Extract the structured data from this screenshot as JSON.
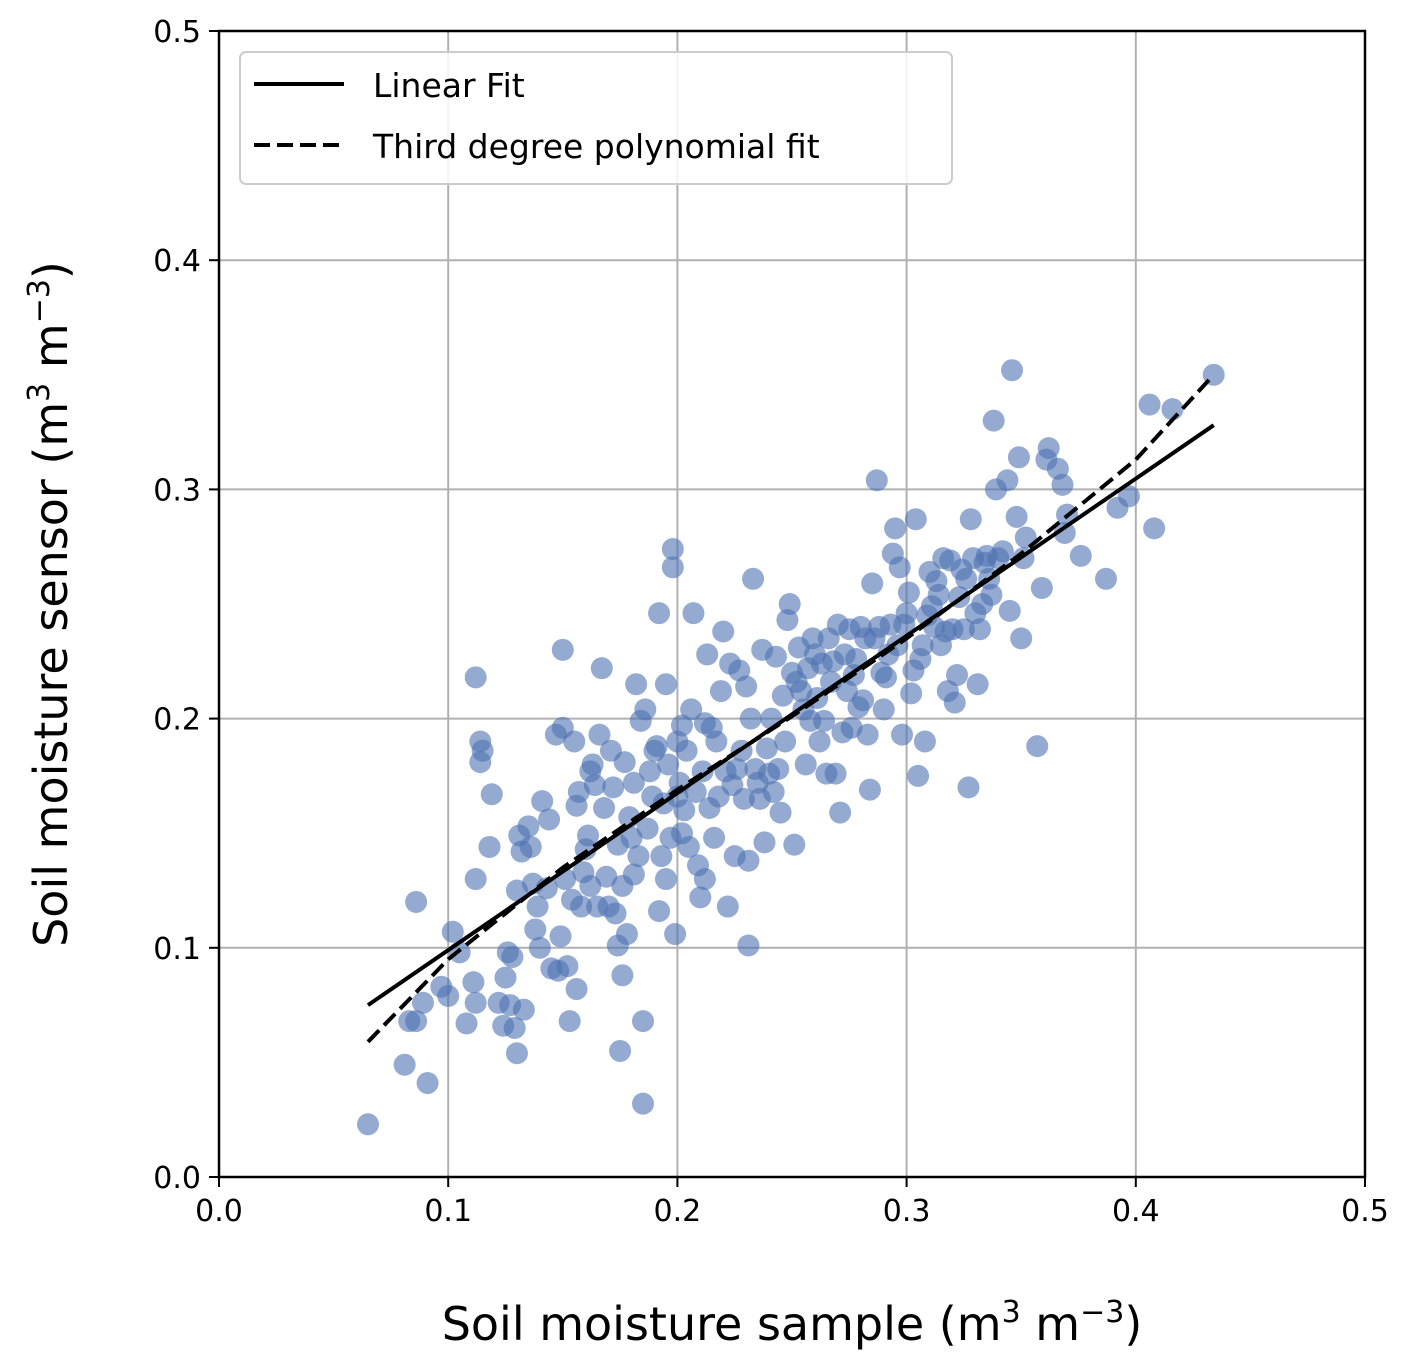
{
  "chart_data": {
    "type": "scatter",
    "xlabel": {
      "text": "Soil moisture sample (m",
      "sup1": "3",
      "mid": " m",
      "sup2": "−3",
      "end": ")"
    },
    "ylabel": {
      "text": "Soil moisture sensor (m",
      "sup1": "3",
      "mid": " m",
      "sup2": "−3",
      "end": ")"
    },
    "xlim": [
      0.0,
      0.5
    ],
    "ylim": [
      0.0,
      0.5
    ],
    "xticks": [
      "0.0",
      "0.1",
      "0.2",
      "0.3",
      "0.4",
      "0.5"
    ],
    "yticks": [
      "0.0",
      "0.1",
      "0.2",
      "0.3",
      "0.4",
      "0.5"
    ],
    "grid": true,
    "legend_position": "top-left",
    "point_color": "#4c72b0",
    "series": [
      {
        "name": "",
        "kind": "scatter",
        "points": [
          [
            0.065,
            0.023
          ],
          [
            0.081,
            0.049
          ],
          [
            0.083,
            0.068
          ],
          [
            0.086,
            0.068
          ],
          [
            0.089,
            0.076
          ],
          [
            0.091,
            0.041
          ],
          [
            0.086,
            0.12
          ],
          [
            0.097,
            0.083
          ],
          [
            0.1,
            0.079
          ],
          [
            0.102,
            0.107
          ],
          [
            0.105,
            0.098
          ],
          [
            0.108,
            0.067
          ],
          [
            0.111,
            0.085
          ],
          [
            0.112,
            0.076
          ],
          [
            0.112,
            0.13
          ],
          [
            0.112,
            0.218
          ],
          [
            0.114,
            0.19
          ],
          [
            0.114,
            0.181
          ],
          [
            0.115,
            0.186
          ],
          [
            0.118,
            0.144
          ],
          [
            0.119,
            0.167
          ],
          [
            0.122,
            0.076
          ],
          [
            0.124,
            0.066
          ],
          [
            0.125,
            0.087
          ],
          [
            0.126,
            0.098
          ],
          [
            0.127,
            0.075
          ],
          [
            0.128,
            0.096
          ],
          [
            0.129,
            0.065
          ],
          [
            0.13,
            0.054
          ],
          [
            0.13,
            0.125
          ],
          [
            0.131,
            0.149
          ],
          [
            0.132,
            0.142
          ],
          [
            0.133,
            0.073
          ],
          [
            0.135,
            0.153
          ],
          [
            0.136,
            0.144
          ],
          [
            0.137,
            0.128
          ],
          [
            0.138,
            0.108
          ],
          [
            0.139,
            0.118
          ],
          [
            0.14,
            0.1
          ],
          [
            0.141,
            0.164
          ],
          [
            0.143,
            0.126
          ],
          [
            0.144,
            0.156
          ],
          [
            0.145,
            0.091
          ],
          [
            0.147,
            0.193
          ],
          [
            0.148,
            0.09
          ],
          [
            0.149,
            0.105
          ],
          [
            0.15,
            0.23
          ],
          [
            0.15,
            0.196
          ],
          [
            0.151,
            0.13
          ],
          [
            0.152,
            0.092
          ],
          [
            0.153,
            0.068
          ],
          [
            0.154,
            0.121
          ],
          [
            0.155,
            0.19
          ],
          [
            0.156,
            0.082
          ],
          [
            0.156,
            0.162
          ],
          [
            0.157,
            0.168
          ],
          [
            0.158,
            0.118
          ],
          [
            0.159,
            0.133
          ],
          [
            0.16,
            0.143
          ],
          [
            0.161,
            0.149
          ],
          [
            0.162,
            0.177
          ],
          [
            0.162,
            0.127
          ],
          [
            0.163,
            0.18
          ],
          [
            0.164,
            0.171
          ],
          [
            0.165,
            0.118
          ],
          [
            0.166,
            0.193
          ],
          [
            0.167,
            0.222
          ],
          [
            0.168,
            0.161
          ],
          [
            0.169,
            0.131
          ],
          [
            0.17,
            0.118
          ],
          [
            0.171,
            0.186
          ],
          [
            0.172,
            0.17
          ],
          [
            0.173,
            0.115
          ],
          [
            0.174,
            0.145
          ],
          [
            0.174,
            0.101
          ],
          [
            0.175,
            0.055
          ],
          [
            0.176,
            0.088
          ],
          [
            0.176,
            0.127
          ],
          [
            0.177,
            0.181
          ],
          [
            0.178,
            0.106
          ],
          [
            0.179,
            0.157
          ],
          [
            0.18,
            0.148
          ],
          [
            0.181,
            0.132
          ],
          [
            0.181,
            0.172
          ],
          [
            0.182,
            0.215
          ],
          [
            0.183,
            0.14
          ],
          [
            0.184,
            0.199
          ],
          [
            0.185,
            0.068
          ],
          [
            0.185,
            0.032
          ],
          [
            0.186,
            0.204
          ],
          [
            0.187,
            0.152
          ],
          [
            0.188,
            0.177
          ],
          [
            0.189,
            0.166
          ],
          [
            0.19,
            0.186
          ],
          [
            0.191,
            0.188
          ],
          [
            0.192,
            0.116
          ],
          [
            0.192,
            0.246
          ],
          [
            0.193,
            0.14
          ],
          [
            0.194,
            0.163
          ],
          [
            0.195,
            0.215
          ],
          [
            0.195,
            0.13
          ],
          [
            0.196,
            0.18
          ],
          [
            0.197,
            0.148
          ],
          [
            0.198,
            0.274
          ],
          [
            0.198,
            0.266
          ],
          [
            0.199,
            0.106
          ],
          [
            0.2,
            0.166
          ],
          [
            0.2,
            0.19
          ],
          [
            0.201,
            0.172
          ],
          [
            0.202,
            0.197
          ],
          [
            0.202,
            0.15
          ],
          [
            0.203,
            0.16
          ],
          [
            0.204,
            0.186
          ],
          [
            0.205,
            0.144
          ],
          [
            0.206,
            0.204
          ],
          [
            0.207,
            0.246
          ],
          [
            0.208,
            0.168
          ],
          [
            0.209,
            0.136
          ],
          [
            0.21,
            0.122
          ],
          [
            0.211,
            0.177
          ],
          [
            0.212,
            0.13
          ],
          [
            0.212,
            0.198
          ],
          [
            0.213,
            0.228
          ],
          [
            0.214,
            0.161
          ],
          [
            0.215,
            0.196
          ],
          [
            0.216,
            0.148
          ],
          [
            0.217,
            0.19
          ],
          [
            0.218,
            0.166
          ],
          [
            0.219,
            0.212
          ],
          [
            0.22,
            0.238
          ],
          [
            0.221,
            0.177
          ],
          [
            0.222,
            0.118
          ],
          [
            0.223,
            0.224
          ],
          [
            0.224,
            0.171
          ],
          [
            0.225,
            0.14
          ],
          [
            0.226,
            0.178
          ],
          [
            0.227,
            0.221
          ],
          [
            0.228,
            0.186
          ],
          [
            0.229,
            0.165
          ],
          [
            0.23,
            0.214
          ],
          [
            0.231,
            0.138
          ],
          [
            0.231,
            0.101
          ],
          [
            0.232,
            0.2
          ],
          [
            0.233,
            0.261
          ],
          [
            0.234,
            0.178
          ],
          [
            0.235,
            0.172
          ],
          [
            0.236,
            0.165
          ],
          [
            0.237,
            0.23
          ],
          [
            0.238,
            0.146
          ],
          [
            0.239,
            0.187
          ],
          [
            0.24,
            0.176
          ],
          [
            0.241,
            0.2
          ],
          [
            0.242,
            0.168
          ],
          [
            0.243,
            0.227
          ],
          [
            0.244,
            0.178
          ],
          [
            0.245,
            0.159
          ],
          [
            0.246,
            0.21
          ],
          [
            0.247,
            0.19
          ],
          [
            0.248,
            0.243
          ],
          [
            0.249,
            0.25
          ],
          [
            0.25,
            0.22
          ],
          [
            0.251,
            0.145
          ],
          [
            0.252,
            0.216
          ],
          [
            0.253,
            0.231
          ],
          [
            0.254,
            0.212
          ],
          [
            0.255,
            0.204
          ],
          [
            0.256,
            0.18
          ],
          [
            0.257,
            0.222
          ],
          [
            0.258,
            0.199
          ],
          [
            0.259,
            0.235
          ],
          [
            0.26,
            0.228
          ],
          [
            0.261,
            0.209
          ],
          [
            0.262,
            0.19
          ],
          [
            0.263,
            0.224
          ],
          [
            0.264,
            0.199
          ],
          [
            0.265,
            0.176
          ],
          [
            0.266,
            0.235
          ],
          [
            0.267,
            0.216
          ],
          [
            0.268,
            0.225
          ],
          [
            0.269,
            0.176
          ],
          [
            0.27,
            0.241
          ],
          [
            0.271,
            0.159
          ],
          [
            0.272,
            0.194
          ],
          [
            0.273,
            0.228
          ],
          [
            0.274,
            0.212
          ],
          [
            0.275,
            0.239
          ],
          [
            0.276,
            0.196
          ],
          [
            0.277,
            0.219
          ],
          [
            0.278,
            0.226
          ],
          [
            0.279,
            0.205
          ],
          [
            0.28,
            0.24
          ],
          [
            0.281,
            0.208
          ],
          [
            0.282,
            0.235
          ],
          [
            0.283,
            0.193
          ],
          [
            0.284,
            0.169
          ],
          [
            0.285,
            0.259
          ],
          [
            0.286,
            0.235
          ],
          [
            0.287,
            0.304
          ],
          [
            0.288,
            0.24
          ],
          [
            0.289,
            0.22
          ],
          [
            0.29,
            0.204
          ],
          [
            0.291,
            0.218
          ],
          [
            0.292,
            0.228
          ],
          [
            0.293,
            0.241
          ],
          [
            0.294,
            0.272
          ],
          [
            0.295,
            0.283
          ],
          [
            0.296,
            0.232
          ],
          [
            0.297,
            0.266
          ],
          [
            0.298,
            0.193
          ],
          [
            0.299,
            0.241
          ],
          [
            0.3,
            0.246
          ],
          [
            0.301,
            0.255
          ],
          [
            0.302,
            0.211
          ],
          [
            0.303,
            0.221
          ],
          [
            0.304,
            0.287
          ],
          [
            0.305,
            0.175
          ],
          [
            0.306,
            0.226
          ],
          [
            0.307,
            0.232
          ],
          [
            0.308,
            0.19
          ],
          [
            0.309,
            0.245
          ],
          [
            0.31,
            0.264
          ],
          [
            0.311,
            0.249
          ],
          [
            0.312,
            0.24
          ],
          [
            0.313,
            0.26
          ],
          [
            0.314,
            0.254
          ],
          [
            0.315,
            0.232
          ],
          [
            0.316,
            0.27
          ],
          [
            0.317,
            0.238
          ],
          [
            0.318,
            0.212
          ],
          [
            0.319,
            0.269
          ],
          [
            0.32,
            0.239
          ],
          [
            0.321,
            0.207
          ],
          [
            0.322,
            0.219
          ],
          [
            0.323,
            0.253
          ],
          [
            0.324,
            0.265
          ],
          [
            0.325,
            0.239
          ],
          [
            0.326,
            0.261
          ],
          [
            0.327,
            0.17
          ],
          [
            0.328,
            0.287
          ],
          [
            0.329,
            0.27
          ],
          [
            0.33,
            0.246
          ],
          [
            0.331,
            0.215
          ],
          [
            0.332,
            0.239
          ],
          [
            0.333,
            0.25
          ],
          [
            0.334,
            0.268
          ],
          [
            0.335,
            0.271
          ],
          [
            0.336,
            0.261
          ],
          [
            0.337,
            0.254
          ],
          [
            0.338,
            0.33
          ],
          [
            0.339,
            0.3
          ],
          [
            0.34,
            0.27
          ],
          [
            0.342,
            0.273
          ],
          [
            0.344,
            0.304
          ],
          [
            0.345,
            0.247
          ],
          [
            0.346,
            0.352
          ],
          [
            0.348,
            0.288
          ],
          [
            0.349,
            0.314
          ],
          [
            0.35,
            0.235
          ],
          [
            0.351,
            0.27
          ],
          [
            0.352,
            0.279
          ],
          [
            0.357,
            0.188
          ],
          [
            0.359,
            0.257
          ],
          [
            0.361,
            0.313
          ],
          [
            0.362,
            0.318
          ],
          [
            0.366,
            0.309
          ],
          [
            0.368,
            0.302
          ],
          [
            0.369,
            0.281
          ],
          [
            0.37,
            0.289
          ],
          [
            0.376,
            0.271
          ],
          [
            0.387,
            0.261
          ],
          [
            0.392,
            0.292
          ],
          [
            0.397,
            0.297
          ],
          [
            0.406,
            0.337
          ],
          [
            0.408,
            0.283
          ],
          [
            0.416,
            0.335
          ],
          [
            0.434,
            0.35
          ]
        ]
      },
      {
        "name": "Linear Fit",
        "kind": "line",
        "dash": "solid",
        "points": [
          [
            0.065,
            0.075
          ],
          [
            0.434,
            0.328
          ]
        ]
      },
      {
        "name": "Third degree polynomial fit",
        "kind": "line",
        "dash": "dashed",
        "points": [
          [
            0.065,
            0.059
          ],
          [
            0.1,
            0.095
          ],
          [
            0.15,
            0.135
          ],
          [
            0.2,
            0.169
          ],
          [
            0.25,
            0.201
          ],
          [
            0.3,
            0.235
          ],
          [
            0.35,
            0.272
          ],
          [
            0.4,
            0.313
          ],
          [
            0.434,
            0.35
          ]
        ]
      }
    ]
  }
}
